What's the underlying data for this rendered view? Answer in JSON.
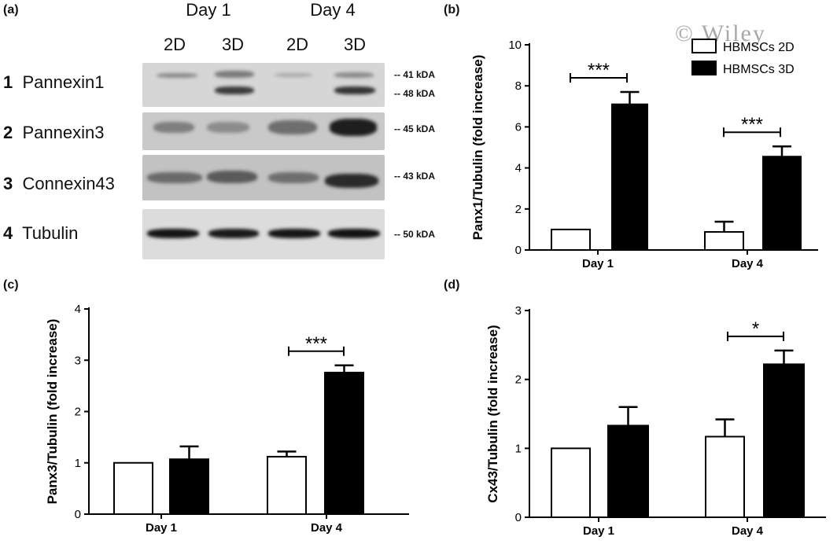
{
  "panel_a": {
    "label": "(a)",
    "days": [
      "Day 1",
      "Day 4"
    ],
    "lanes": [
      "2D",
      "3D",
      "2D",
      "3D"
    ],
    "rows": [
      {
        "num": "1",
        "name": "Pannexin1",
        "kda": [
          "-- 41 kDA",
          "-- 48 kDA"
        ]
      },
      {
        "num": "2",
        "name": "Pannexin3",
        "kda": [
          "-- 45 kDA"
        ]
      },
      {
        "num": "3",
        "name": "Connexin43",
        "kda": [
          "-- 43 kDA"
        ]
      },
      {
        "num": "4",
        "name": "Tubulin",
        "kda": [
          "-- 50 kDA"
        ]
      }
    ]
  },
  "watermark": "© Wiley",
  "colors": {
    "2D": "#ffffff",
    "3D": "#000000",
    "axis": "#000000"
  },
  "chart_data": [
    {
      "id": "b",
      "panel_label": "(b)",
      "type": "bar",
      "categories": [
        "Day 1",
        "Day 4"
      ],
      "series": [
        {
          "name": "HBMSCs 2D",
          "values": [
            1.0,
            0.88
          ],
          "errors": [
            0,
            0.5
          ]
        },
        {
          "name": "HBMSCs 3D",
          "values": [
            7.1,
            4.55
          ],
          "errors": [
            0.6,
            0.5
          ]
        }
      ],
      "ylabel": "Panx1/Tubulin (fold increase)",
      "xlabel": "",
      "ylim": [
        0,
        10
      ],
      "yticks": [
        "0",
        "2",
        "4",
        "6",
        "8",
        "10"
      ],
      "significance": [
        "***",
        "***"
      ],
      "legend": "top-right"
    },
    {
      "id": "c",
      "panel_label": "(c)",
      "type": "bar",
      "categories": [
        "Day 1",
        "Day 4"
      ],
      "series": [
        {
          "values": [
            1.0,
            1.12
          ],
          "errors": [
            0,
            0.1
          ]
        },
        {
          "values": [
            1.07,
            2.76
          ],
          "errors": [
            0.25,
            0.14
          ]
        }
      ],
      "ylabel": "Panx3/Tubulin (fold increase)",
      "xlabel": "",
      "ylim": [
        0,
        4
      ],
      "yticks": [
        "0",
        "1",
        "2",
        "3",
        "4"
      ],
      "significance": [
        "",
        "***"
      ]
    },
    {
      "id": "d",
      "panel_label": "(d)",
      "type": "bar",
      "categories": [
        "Day 1",
        "Day 4"
      ],
      "series": [
        {
          "values": [
            1.0,
            1.17
          ],
          "errors": [
            0,
            0.25
          ]
        },
        {
          "values": [
            1.33,
            2.22
          ],
          "errors": [
            0.27,
            0.2
          ]
        }
      ],
      "ylabel": "Cx43/Tubulin (fold increase)",
      "xlabel": "",
      "ylim": [
        0,
        3
      ],
      "yticks": [
        "0",
        "1",
        "2",
        "3"
      ],
      "significance": [
        "",
        "*"
      ]
    }
  ]
}
